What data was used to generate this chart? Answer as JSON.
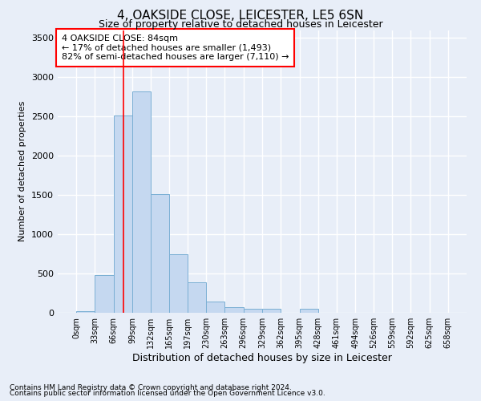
{
  "title": "4, OAKSIDE CLOSE, LEICESTER, LE5 6SN",
  "subtitle": "Size of property relative to detached houses in Leicester",
  "xlabel": "Distribution of detached houses by size in Leicester",
  "ylabel": "Number of detached properties",
  "footnote1": "Contains HM Land Registry data © Crown copyright and database right 2024.",
  "footnote2": "Contains public sector information licensed under the Open Government Licence v3.0.",
  "annotation_line1": "4 OAKSIDE CLOSE: 84sqm",
  "annotation_line2": "← 17% of detached houses are smaller (1,493)",
  "annotation_line3": "82% of semi-detached houses are larger (7,110) →",
  "bar_bins": [
    0,
    33,
    66,
    99,
    132,
    165,
    197,
    230,
    263,
    296,
    329,
    362,
    395,
    428,
    461,
    494,
    526,
    559,
    592,
    625,
    658
  ],
  "bar_heights": [
    20,
    480,
    2510,
    2820,
    1515,
    750,
    385,
    140,
    70,
    50,
    55,
    0,
    55,
    0,
    0,
    0,
    0,
    0,
    0,
    0
  ],
  "bar_color": "#c5d8f0",
  "bar_edge_color": "#7aafd4",
  "property_line_x": 84,
  "property_line_color": "red",
  "ylim": [
    0,
    3600
  ],
  "yticks": [
    0,
    500,
    1000,
    1500,
    2000,
    2500,
    3000,
    3500
  ],
  "bg_color": "#e8eef8",
  "grid_color": "#ffffff",
  "annotation_box_color": "white",
  "annotation_box_edge": "red",
  "title_fontsize": 11,
  "subtitle_fontsize": 9,
  "xlabel_fontsize": 9,
  "ylabel_fontsize": 8,
  "annotation_fontsize": 8,
  "xtick_fontsize": 7,
  "ytick_fontsize": 8,
  "footnote_fontsize": 6.5
}
